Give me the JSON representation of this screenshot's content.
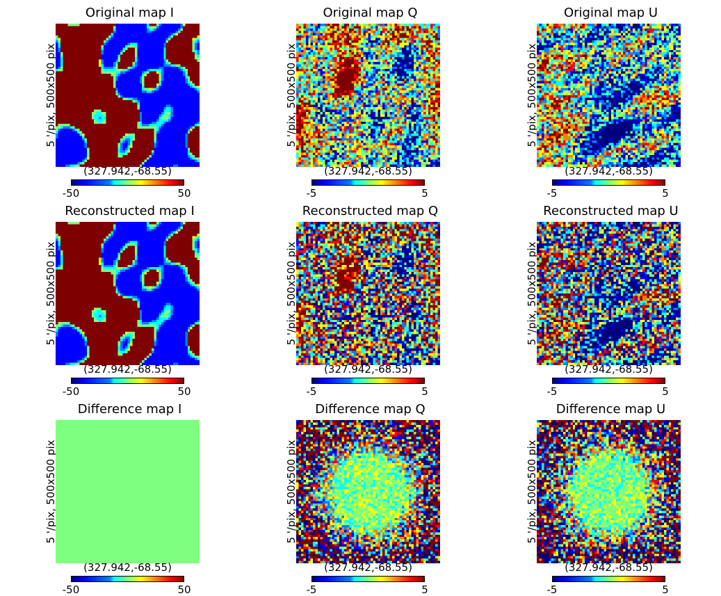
{
  "chart_data": {
    "type": "heatmap",
    "grid": {
      "rows": 3,
      "cols": 3
    },
    "colormap": "jet",
    "colormap_colors": [
      "#00007f",
      "#0000ff",
      "#0080ff",
      "#00ffff",
      "#7fff7f",
      "#ffff00",
      "#ff8000",
      "#ff0000",
      "#7f0000"
    ],
    "axis_label": "5 '/pix,   500x500 pix",
    "center_coordinate": "(327.942,-68.55)",
    "panels": [
      {
        "id": "orig-i",
        "title": "Original map I",
        "row": 0,
        "col": 0,
        "cmin": "-50",
        "cmax": "50",
        "pattern": "blobs",
        "seed": 11
      },
      {
        "id": "orig-q",
        "title": "Original map Q",
        "row": 0,
        "col": 1,
        "cmin": "-5",
        "cmax": "5",
        "pattern": "polar-q",
        "seed": 23
      },
      {
        "id": "orig-u",
        "title": "Original map U",
        "row": 0,
        "col": 2,
        "cmin": "-5",
        "cmax": "5",
        "pattern": "polar-u",
        "seed": 37
      },
      {
        "id": "recon-i",
        "title": "Reconstructed map I",
        "row": 1,
        "col": 0,
        "cmin": "-50",
        "cmax": "50",
        "pattern": "blobs",
        "seed": 11
      },
      {
        "id": "recon-q",
        "title": "Reconstructed map Q",
        "row": 1,
        "col": 1,
        "cmin": "-5",
        "cmax": "5",
        "pattern": "polar-q-noisy",
        "seed": 23
      },
      {
        "id": "recon-u",
        "title": "Reconstructed map U",
        "row": 1,
        "col": 2,
        "cmin": "-5",
        "cmax": "5",
        "pattern": "polar-u-noisy",
        "seed": 37
      },
      {
        "id": "diff-i",
        "title": "Difference map I",
        "row": 2,
        "col": 0,
        "cmin": "-50",
        "cmax": "50",
        "pattern": "flat",
        "seed": 41
      },
      {
        "id": "diff-q",
        "title": "Difference map Q",
        "row": 2,
        "col": 1,
        "cmin": "-5",
        "cmax": "5",
        "pattern": "diff-ring",
        "seed": 53
      },
      {
        "id": "diff-u",
        "title": "Difference map U",
        "row": 2,
        "col": 2,
        "cmin": "-5",
        "cmax": "5",
        "pattern": "diff-ring",
        "seed": 67
      }
    ]
  }
}
